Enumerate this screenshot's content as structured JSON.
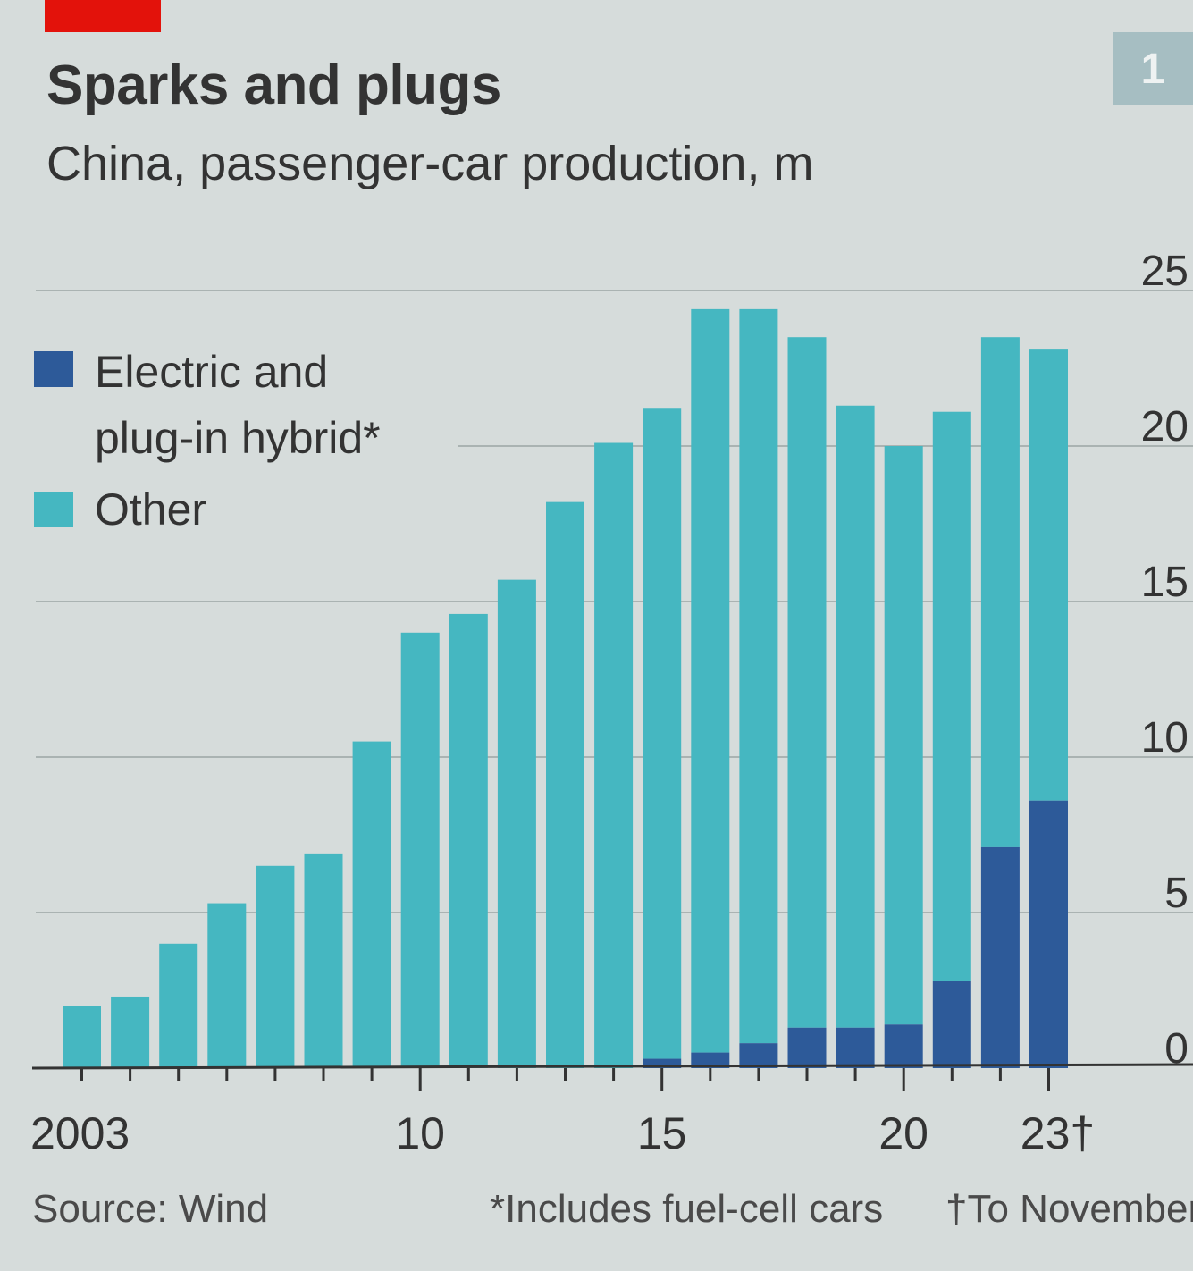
{
  "chart_number": "1",
  "chart_data": {
    "type": "bar",
    "stacked": true,
    "title": "Sparks and plugs",
    "subtitle": "China, passenger-car production, m",
    "categories": [
      "2003",
      "2004",
      "2005",
      "2006",
      "2007",
      "2008",
      "2009",
      "2010",
      "2011",
      "2012",
      "2013",
      "2014",
      "2015",
      "2016",
      "2017",
      "2018",
      "2019",
      "2020",
      "2021",
      "2022",
      "2023"
    ],
    "series": [
      {
        "name": "Electric and plug-in hybrid*",
        "color": "#2d5a99",
        "values": [
          0,
          0,
          0,
          0,
          0,
          0,
          0,
          0,
          0,
          0,
          0,
          0,
          0.3,
          0.5,
          0.8,
          1.3,
          1.3,
          1.4,
          2.8,
          7.1,
          8.6
        ]
      },
      {
        "name": "Other",
        "color": "#45b7c1",
        "values": [
          2.0,
          2.3,
          4.0,
          5.3,
          6.5,
          6.9,
          10.5,
          14.0,
          14.6,
          15.7,
          18.2,
          20.1,
          20.9,
          23.9,
          23.6,
          22.2,
          20.0,
          18.6,
          18.3,
          16.4,
          14.5
        ]
      }
    ],
    "ylim": [
      0,
      25
    ],
    "yticks": [
      "0",
      "5",
      "10",
      "15",
      "20",
      "25"
    ],
    "xtick_labels": [
      {
        "index": 0,
        "label": "2003"
      },
      {
        "index": 7,
        "label": "10"
      },
      {
        "index": 12,
        "label": "15"
      },
      {
        "index": 17,
        "label": "20"
      },
      {
        "index": 20,
        "label": "23†"
      }
    ],
    "legend": [
      "Electric and plug-in hybrid*",
      "Other"
    ],
    "legend_position": "top-left",
    "grid": true
  },
  "legend": {
    "electric_line1": "Electric and",
    "electric_line2": "plug-in hybrid*",
    "other": "Other"
  },
  "source": "Source: Wind",
  "footnote": "*Includes fuel-cell cars",
  "footnote2": "†To November"
}
